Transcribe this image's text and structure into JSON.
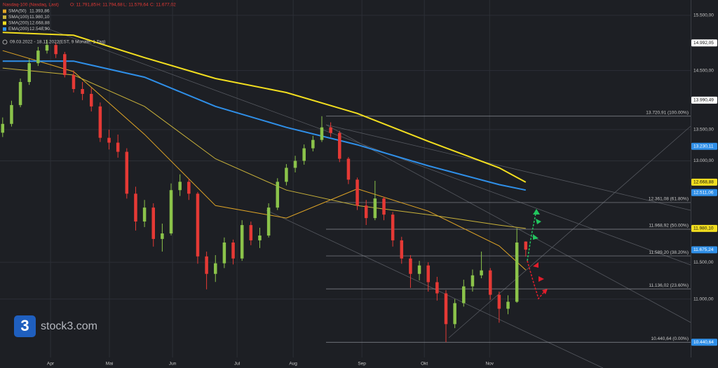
{
  "chart_data": {
    "type": "candlestick",
    "title": "Nasdaq-100 (Nasdaq, Last)",
    "ohlc_labels": [
      "O: 11.791,85",
      "H: 11.794,68",
      "L: 11.579,64",
      "C: 11.677,02"
    ],
    "period": "09.03.2022 - 18.11.2022",
    "period_note": "(EST, 9 Monate, 1 Tag)",
    "logo": "stock3.com",
    "logo_icon": "3",
    "log_scale": true,
    "grid": true,
    "up_color": "#8bc34a",
    "down_color": "#e53935",
    "ylim": [
      10250,
      15790
    ],
    "yticks": [
      {
        "value": 15500,
        "label": "15.500,00"
      },
      {
        "value": 14500,
        "label": "14.500,00"
      },
      {
        "value": 13500,
        "label": "13.500,00"
      },
      {
        "value": 13000,
        "label": "13.000,00"
      },
      {
        "value": 11500,
        "label": "11.500,00"
      },
      {
        "value": 11000,
        "label": "11.000,00"
      }
    ],
    "xlim": [
      -0.3,
      77.6
    ],
    "xticks": [
      {
        "value": 5.4,
        "label": "Apr"
      },
      {
        "value": 12.04,
        "label": "Mai"
      },
      {
        "value": 19.16,
        "label": "Jun"
      },
      {
        "value": 26.44,
        "label": "Jul"
      },
      {
        "value": 32.77,
        "label": "Aug"
      },
      {
        "value": 40.52,
        "label": "Sep"
      },
      {
        "value": 47.56,
        "label": "Okt"
      },
      {
        "value": 54.92,
        "label": "Nov"
      }
    ],
    "candles": {
      "open": [
        13450,
        13594,
        13907,
        14300,
        14629,
        14853,
        14954,
        14790,
        14421,
        14179,
        14096,
        13884,
        13367,
        13289,
        13143,
        12494,
        12081,
        12286,
        11829,
        11908,
        12548,
        12675,
        12494,
        11582,
        11340,
        11486,
        11778,
        11553,
        12029,
        11809,
        11878,
        12286,
        12675,
        12891,
        13000,
        13199,
        13333,
        13537,
        13446,
        13033,
        12708,
        12316,
        12131,
        12422,
        12182,
        11809,
        11553,
        11340,
        11456,
        11227,
        11076,
        10672,
        10946,
        11170,
        11320,
        11388,
        11057,
        10872,
        10964,
        11791.85
      ],
      "high": [
        13700,
        13980,
        14360,
        14700,
        14920,
        15050,
        15000,
        14830,
        14500,
        14300,
        14200,
        13950,
        13500,
        13420,
        13200,
        12600,
        12400,
        12350,
        12050,
        12650,
        12790,
        12720,
        12520,
        11650,
        11600,
        11850,
        11820,
        12100,
        12080,
        11990,
        12350,
        12730,
        12950,
        13080,
        13260,
        13400,
        13721,
        13620,
        13480,
        13060,
        12740,
        12400,
        12690,
        12450,
        12220,
        11860,
        11600,
        11520,
        11500,
        11300,
        11120,
        11000,
        11260,
        11400,
        11650,
        11420,
        11100,
        11050,
        11980,
        11794.68
      ],
      "low": [
        13380,
        13550,
        13870,
        14250,
        14580,
        14800,
        14720,
        14380,
        14120,
        13990,
        13800,
        13300,
        13180,
        13050,
        12420,
        11950,
        12000,
        11720,
        11650,
        11880,
        12460,
        12400,
        11480,
        11130,
        11230,
        11420,
        11470,
        11520,
        11740,
        11700,
        11850,
        12250,
        12620,
        12820,
        12940,
        13150,
        13300,
        13380,
        12980,
        12640,
        12250,
        12030,
        12100,
        12100,
        11720,
        11480,
        11150,
        11250,
        11100,
        10980,
        10441,
        10620,
        10900,
        11100,
        11280,
        10990,
        10690,
        10800,
        10950,
        11579.64
      ],
      "close": [
        13594,
        13907,
        14300,
        14629,
        14853,
        14954,
        14790,
        14421,
        14179,
        14096,
        13884,
        13367,
        13289,
        13143,
        12494,
        12081,
        12286,
        11829,
        11908,
        12548,
        12675,
        12494,
        11582,
        11340,
        11486,
        11778,
        11553,
        12029,
        11809,
        11878,
        12286,
        12675,
        12891,
        13000,
        13199,
        13333,
        13537,
        13446,
        13033,
        12708,
        12316,
        12131,
        12422,
        12182,
        11809,
        11553,
        11340,
        11456,
        11227,
        11076,
        10672,
        10946,
        11170,
        11320,
        11388,
        11057,
        10872,
        10964,
        11778,
        11677.02
      ]
    },
    "series": [
      {
        "name": "SMA(50)",
        "legend_label": "11.393,86",
        "color": "#e0a526",
        "width": 1,
        "x": [
          0,
          8,
          16,
          24,
          32,
          40,
          48,
          56,
          59
        ],
        "values": [
          14853,
          14482,
          13423,
          12316,
          12131,
          12568,
          12234,
          11730,
          11393.86
        ]
      },
      {
        "name": "SMA(100)",
        "legend_label": "11.980,10",
        "color": "#c9b23a",
        "width": 1,
        "x": [
          0,
          8,
          16,
          24,
          32,
          40,
          48,
          56,
          59
        ],
        "values": [
          14543,
          14421,
          13884,
          13033,
          12548,
          12316,
          12182,
          12029,
          11980.1
        ]
      },
      {
        "name": "SMA(200)",
        "legend_label": "12.668,88",
        "color": "#f2de1f",
        "width": 2,
        "x": [
          0,
          8,
          16,
          24,
          32,
          40,
          48,
          56,
          59
        ],
        "values": [
          15182,
          15131,
          14728,
          14360,
          14119,
          13767,
          13311,
          12891,
          12668.88
        ]
      },
      {
        "name": "EMA(200)",
        "legend_label": "12.548,90",
        "color": "#2f8fe8",
        "width": 2,
        "x": [
          0,
          8,
          16,
          24,
          32,
          40,
          48,
          56,
          59
        ],
        "values": [
          14666,
          14666,
          14384,
          13884,
          13537,
          13255,
          12923,
          12632,
          12548.9
        ]
      }
    ],
    "fibonacci": [
      {
        "value": 13720.91,
        "label": "13.720,91 (100.00%)"
      },
      {
        "value": 12361.08,
        "label": "12.361,08 (61.80%)"
      },
      {
        "value": 11968.92,
        "label": "11.968,92 (50.00%)"
      },
      {
        "value": 11589.2,
        "label": "11.589,20 (38.20%)"
      },
      {
        "value": 11136.02,
        "label": "11.136,02 (23.60%)"
      },
      {
        "value": 10440.64,
        "label": "10.440,64 (0.00%)"
      }
    ],
    "price_labels": [
      {
        "value": 14992.05,
        "label": "14.992,05",
        "color": "#ffffff"
      },
      {
        "value": 13990.49,
        "label": "13.990,49",
        "color": "#ffffff"
      },
      {
        "value": 13230.11,
        "label": "13.230,11",
        "color": "#2f8fe8"
      },
      {
        "value": 12668.88,
        "label": "12.668,88",
        "color": "#f2de1f"
      },
      {
        "value": 12511.06,
        "label": "12.511,06",
        "color": "#2f8fe8"
      },
      {
        "value": 11980.1,
        "label": "11.980,10",
        "color": "#f2de1f"
      },
      {
        "value": 11675.24,
        "label": "11.675,24",
        "color": "#2f8fe8"
      },
      {
        "value": 10440.64,
        "label": "10.440,64",
        "color": "#2f8fe8"
      }
    ]
  }
}
